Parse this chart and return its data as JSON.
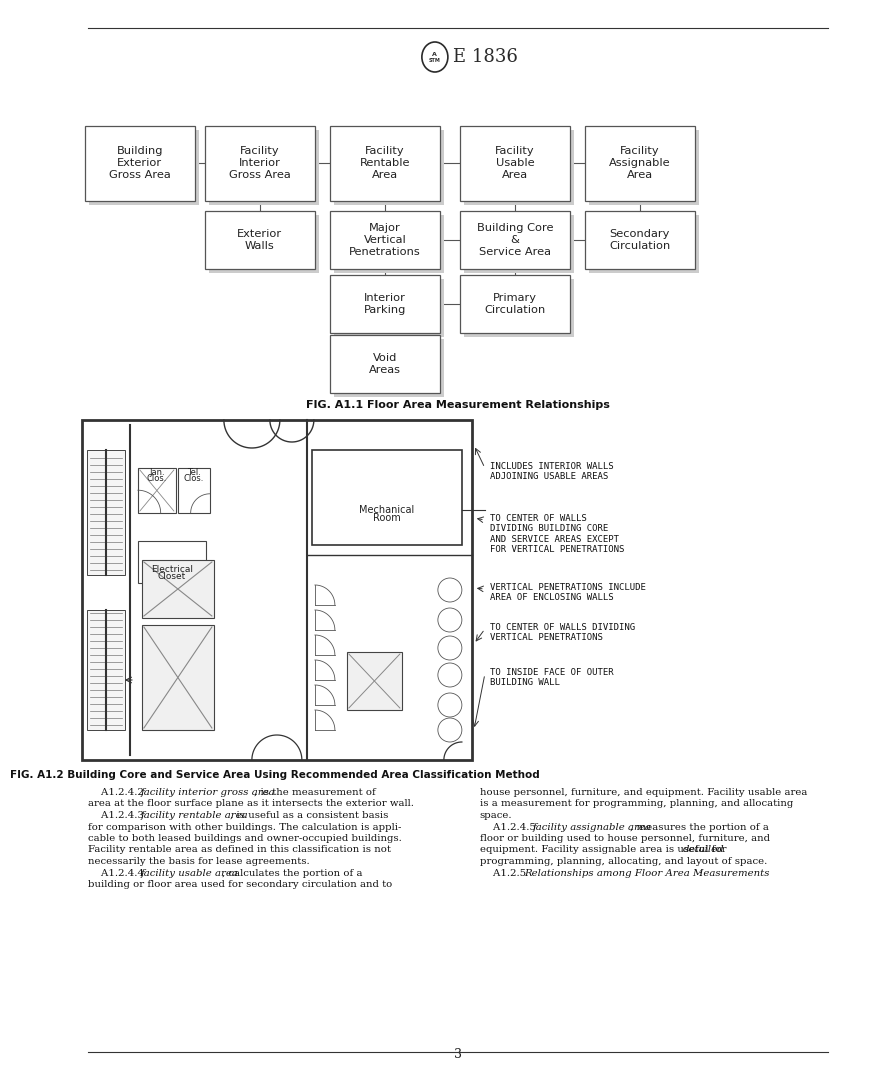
{
  "page_bg": "#ffffff",
  "title_text": "E 1836",
  "fig1_caption": "FIG. A1.1 Floor Area Measurement Relationships",
  "fig2_caption": "FIG. A1.2 Building Core and Service Area Using Recommended Area Classification Method",
  "page_number": "3",
  "flowchart": {
    "row1": [
      {
        "label": "Building\nExterior\nGross Area",
        "col": 0
      },
      {
        "label": "Facility\nInterior\nGross Area",
        "col": 1
      },
      {
        "label": "Facility\nRentable\nArea",
        "col": 2
      },
      {
        "label": "Facility\nUsable\nArea",
        "col": 3
      },
      {
        "label": "Facility\nAssignable\nArea",
        "col": 4
      }
    ],
    "row2": [
      {
        "label": "Exterior\nWalls",
        "col": 1
      },
      {
        "label": "Major\nVertical\nPenetrations",
        "col": 2
      },
      {
        "label": "Building Core\n&\nService Area",
        "col": 3
      },
      {
        "label": "Secondary\nCirculation",
        "col": 4
      }
    ],
    "row3": [
      {
        "label": "Interior\nParking",
        "col": 2
      },
      {
        "label": "Primary\nCirculation",
        "col": 3
      }
    ],
    "row4": [
      {
        "label": "Void\nAreas",
        "col": 2
      }
    ]
  },
  "annotations": [
    "INCLUDES INTERIOR WALLS\nADJOINING USABLE AREAS",
    "TO CENTER OF WALLS\nDIVIDING BUILDING CORE\nAND SERVICE AREAS EXCEPT\nFOR VERTICAL PENETRATIONS",
    "VERTICAL PENETRATIONS INCLUDE\nAREA OF ENCLOSING WALLS",
    "TO CENTER OF WALLS DIVIDING\nVERTICAL PENETRATIONS",
    "TO INSIDE FACE OF OUTER\nBUILDING WALL"
  ],
  "body_left_lines": [
    [
      "normal",
      "    A1.2.4.2 "
    ],
    [
      "italic",
      "facility interior gross area"
    ],
    [
      "normal",
      ", is the measurement of"
    ],
    [
      "normal",
      "area at the floor surface plane as it intersects the exterior wall."
    ],
    [
      "normal",
      "    A1.2.4.3 "
    ],
    [
      "italic",
      "facility rentable area"
    ],
    [
      "normal",
      ", is useful as a consistent basis"
    ],
    [
      "normal",
      "for comparison with other buildings. The calculation is appli-"
    ],
    [
      "normal",
      "cable to both leased buildings and owner-occupied buildings."
    ],
    [
      "normal",
      "Facility rentable area as defined in this classification is not"
    ],
    [
      "normal",
      "necessarily the basis for lease agreements."
    ],
    [
      "normal",
      "    A1.2.4.4 "
    ],
    [
      "italic",
      "facility usable area"
    ],
    [
      "normal",
      ", calculates the portion of a"
    ],
    [
      "normal",
      "building or floor area used for secondary circulation and to"
    ]
  ],
  "body_right_lines": [
    [
      "normal",
      "house personnel, furniture, and equipment. Facility usable area"
    ],
    [
      "normal",
      "is a measurement for programming, planning, and allocating"
    ],
    [
      "normal",
      "space."
    ],
    [
      "normal",
      "    A1.2.4.5 "
    ],
    [
      "italic",
      "facility assignable area"
    ],
    [
      "normal",
      ", measures the portion of a"
    ],
    [
      "normal",
      "floor or building used to house personnel, furniture, and"
    ],
    [
      "normal",
      "equipment. Facility assignable area is useful for "
    ],
    [
      "italic",
      "detailed"
    ],
    [
      "normal",
      "programming, planning, allocating, and layout of space."
    ],
    [
      "normal",
      "    A1.2.5 "
    ],
    [
      "italic",
      "Relationships among Floor Area Measurements"
    ],
    [
      "normal",
      ":"
    ]
  ]
}
